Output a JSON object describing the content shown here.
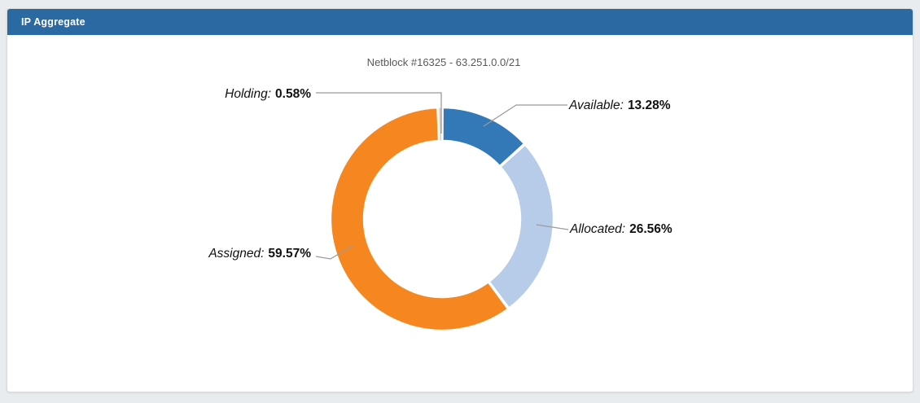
{
  "panel": {
    "header_title": "IP Aggregate"
  },
  "chart_data": {
    "type": "pie",
    "subtype": "donut",
    "title": "Netblock #16325 - 63.251.0.0/21",
    "unit": "%",
    "start_angle_deg": 0,
    "direction": "clockwise",
    "legend_position": "callout-labels",
    "segments": [
      {
        "name": "Available:",
        "value": 13.28,
        "pct_label": "13.28%",
        "color": "#3379B8"
      },
      {
        "name": "Allocated:",
        "value": 26.56,
        "pct_label": "26.56%",
        "color": "#B7CCE9"
      },
      {
        "name": "Assigned:",
        "value": 59.57,
        "pct_label": "59.57%",
        "color": "#F6861F"
      },
      {
        "name": "Holding:",
        "value": 0.58,
        "pct_label": "0.58%",
        "color": "#DFD3BE"
      }
    ]
  }
}
